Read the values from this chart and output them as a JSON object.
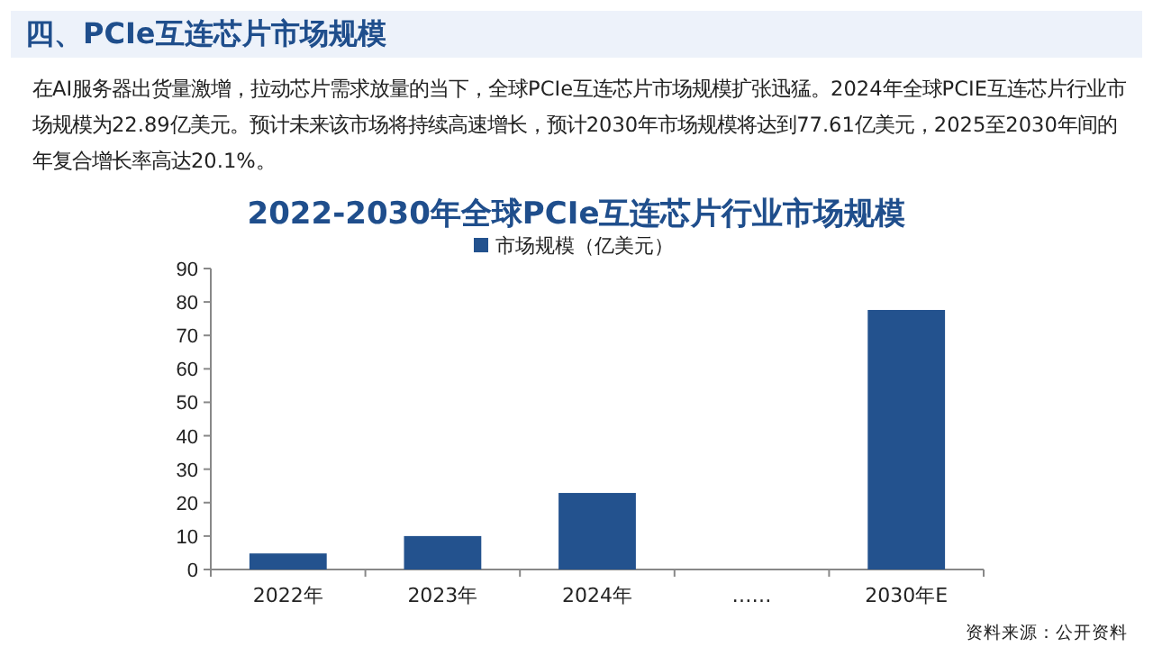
{
  "chart_data": {
    "type": "bar",
    "title": "2022-2030年全球PCIe互连芯片行业市场规模",
    "annotations": [
      "四、PCIe互连芯片市场规模",
      "在AI服务器出货量激增，拉动芯片需求放量的当下，全球PCIe互连芯片市场规模扩张迅猛。2024年全球PCIE互连芯片行业市场规模为22.89亿美元。预计未来该市场将持续高速增长，预计2030年市场规模将达到77.61亿美元，2025至2030年间的年复合增长率高达20.1%。",
      "资料来源：公开资料"
    ],
    "categories": [
      "2022年",
      "2023年",
      "2024年",
      "……",
      "2030年E"
    ],
    "series": [
      {
        "name": "市场规模（亿美元）",
        "color": "#23528e",
        "values": [
          4.8,
          10.0,
          22.89,
          null,
          77.61
        ]
      }
    ],
    "ylim": [
      0,
      90
    ],
    "yticks": [
      0,
      10,
      20,
      30,
      40,
      50,
      60,
      70,
      80,
      90
    ],
    "legend": "top",
    "grid": false
  }
}
